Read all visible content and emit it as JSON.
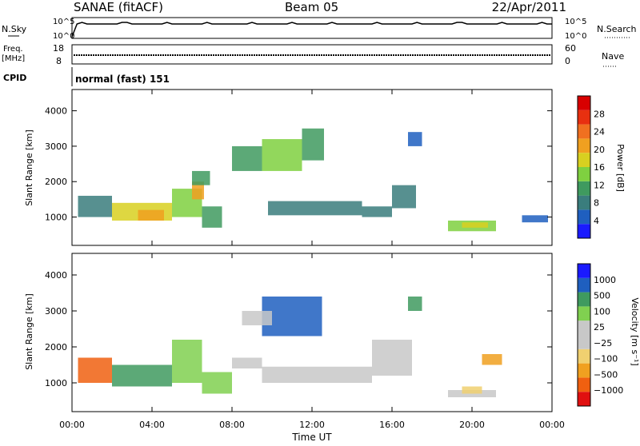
{
  "header": {
    "station": "SANAE (fitACF)",
    "beam": "Beam 05",
    "date": "22/Apr/2011"
  },
  "control_panel": {
    "nsky_label": "N.Sky",
    "nsky_ticks": [
      "10^5",
      "10^0"
    ],
    "nsearch_label": "N.Search",
    "nsearch_ticks": [
      "10^5",
      "10^0"
    ],
    "freq_label_line1": "Freq.",
    "freq_label_line2": "[MHz]",
    "freq_ticks": [
      "18",
      "8"
    ],
    "nave_label": "Nave",
    "nave_ticks": [
      "60",
      "0"
    ],
    "cpid_label": "CPID",
    "cpid_value": "normal (fast) 151"
  },
  "colors": {
    "power": [
      "#1a1aff",
      "#1f5fbf",
      "#3a7d7d",
      "#3f9a5f",
      "#7fd040",
      "#d8d020",
      "#f0a020",
      "#f07020",
      "#e83010",
      "#d80000"
    ],
    "velocity": [
      "#e01010",
      "#f06010",
      "#f0a020",
      "#f0d070",
      "#c8c8c8",
      "#c8c8c8",
      "#80d050",
      "#3f9a5f",
      "#1f5fbf",
      "#1a1aff"
    ],
    "line": "#000000"
  },
  "chart_data": [
    {
      "type": "heatmap",
      "name": "power",
      "ylabel": "Slant Range [km]",
      "ylim": [
        200,
        4600
      ],
      "yticks": [
        "4000",
        "3000",
        "2000",
        "1000"
      ],
      "xlim": [
        0,
        24
      ],
      "colorbar_label": "Power [dB]",
      "colorbar_ticks": [
        "28",
        "24",
        "20",
        "16",
        "12",
        "8",
        "4"
      ],
      "clim": [
        0,
        32
      ],
      "patches": [
        {
          "t0": 0.3,
          "t1": 2.0,
          "r0": 1000,
          "r1": 1600,
          "v": 8
        },
        {
          "t0": 2.0,
          "t1": 5.0,
          "r0": 900,
          "r1": 1400,
          "v": 16
        },
        {
          "t0": 3.3,
          "t1": 4.6,
          "r0": 900,
          "r1": 1200,
          "v": 22
        },
        {
          "t0": 5.0,
          "t1": 6.5,
          "r0": 1000,
          "r1": 1800,
          "v": 14
        },
        {
          "t0": 6.0,
          "t1": 6.6,
          "r0": 1500,
          "r1": 2000,
          "v": 20
        },
        {
          "t0": 6.5,
          "t1": 7.5,
          "r0": 700,
          "r1": 1300,
          "v": 10
        },
        {
          "t0": 6.0,
          "t1": 6.9,
          "r0": 1900,
          "r1": 2300,
          "v": 10
        },
        {
          "t0": 8.0,
          "t1": 9.5,
          "r0": 2300,
          "r1": 3000,
          "v": 10
        },
        {
          "t0": 9.5,
          "t1": 11.5,
          "r0": 2300,
          "r1": 3200,
          "v": 14
        },
        {
          "t0": 11.5,
          "t1": 12.6,
          "r0": 2600,
          "r1": 3500,
          "v": 10
        },
        {
          "t0": 9.8,
          "t1": 14.5,
          "r0": 1050,
          "r1": 1450,
          "v": 7
        },
        {
          "t0": 14.5,
          "t1": 16.0,
          "r0": 1000,
          "r1": 1300,
          "v": 9
        },
        {
          "t0": 16.0,
          "t1": 17.2,
          "r0": 1250,
          "r1": 1900,
          "v": 7
        },
        {
          "t0": 16.8,
          "t1": 17.5,
          "r0": 3000,
          "r1": 3400,
          "v": 6
        },
        {
          "t0": 18.8,
          "t1": 21.2,
          "r0": 600,
          "r1": 900,
          "v": 13
        },
        {
          "t0": 19.5,
          "t1": 20.8,
          "r0": 700,
          "r1": 850,
          "v": 18
        },
        {
          "t0": 22.5,
          "t1": 23.8,
          "r0": 850,
          "r1": 1050,
          "v": 5
        }
      ]
    },
    {
      "type": "heatmap",
      "name": "velocity",
      "ylabel": "Slant Range [km]",
      "ylim": [
        200,
        4600
      ],
      "yticks": [
        "4000",
        "3000",
        "2000",
        "1000"
      ],
      "xlim": [
        0,
        24
      ],
      "xticks": [
        "00:00",
        "04:00",
        "08:00",
        "12:00",
        "16:00",
        "20:00",
        "00:00"
      ],
      "xlabel": "Time UT",
      "colorbar_label": "Velocity [m s⁻¹]",
      "colorbar_ticks": [
        "1000",
        "500",
        "100",
        "25",
        "−25",
        "−100",
        "−500",
        "−1000"
      ],
      "patches": [
        {
          "t0": 0.3,
          "t1": 2.0,
          "r0": 1000,
          "r1": 1700,
          "c": 1
        },
        {
          "t0": 2.0,
          "t1": 5.0,
          "r0": 900,
          "r1": 1500,
          "c": 7
        },
        {
          "t0": 5.0,
          "t1": 6.5,
          "r0": 1000,
          "r1": 2200,
          "c": 6
        },
        {
          "t0": 6.5,
          "t1": 8.0,
          "r0": 700,
          "r1": 1300,
          "c": 6
        },
        {
          "t0": 8.0,
          "t1": 9.5,
          "r0": 1400,
          "r1": 1700,
          "c": 4
        },
        {
          "t0": 9.5,
          "t1": 15.0,
          "r0": 1000,
          "r1": 1450,
          "c": 4
        },
        {
          "t0": 15.0,
          "t1": 17.0,
          "r0": 1200,
          "r1": 2200,
          "c": 4
        },
        {
          "t0": 9.5,
          "t1": 12.5,
          "r0": 2300,
          "r1": 3400,
          "c": 8
        },
        {
          "t0": 8.5,
          "t1": 10.0,
          "r0": 2600,
          "r1": 3000,
          "c": 4
        },
        {
          "t0": 16.8,
          "t1": 17.5,
          "r0": 3000,
          "r1": 3400,
          "c": 7
        },
        {
          "t0": 18.8,
          "t1": 21.2,
          "r0": 600,
          "r1": 800,
          "c": 4
        },
        {
          "t0": 19.5,
          "t1": 20.5,
          "r0": 700,
          "r1": 900,
          "c": 3
        },
        {
          "t0": 20.5,
          "t1": 21.5,
          "r0": 1500,
          "r1": 1800,
          "c": 2
        }
      ]
    }
  ]
}
